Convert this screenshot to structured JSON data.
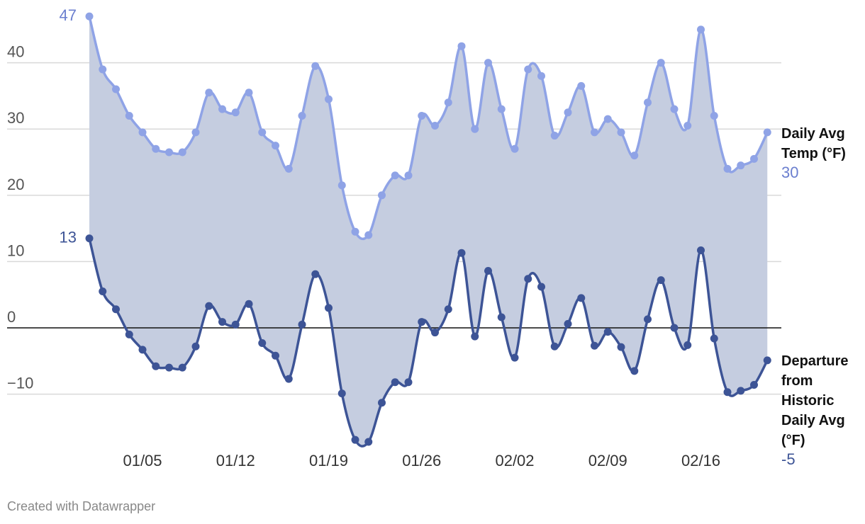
{
  "chart_data": {
    "type": "area",
    "title": "",
    "xlabel": "",
    "ylabel": "",
    "ylim": [
      -20,
      50
    ],
    "y_ticks": [
      -10,
      0,
      10,
      20,
      30,
      40
    ],
    "y_tick_labels": [
      "−10",
      "0",
      "10",
      "20",
      "30",
      "40"
    ],
    "x_tick_labels": [
      "01/05",
      "01/12",
      "01/19",
      "01/26",
      "02/02",
      "02/09",
      "02/16"
    ],
    "x_tick_day_index": [
      4,
      11,
      18,
      25,
      32,
      39,
      46
    ],
    "grid": true,
    "zero_line": true,
    "fill_between_series": true,
    "colors": {
      "temp": "#8fa3e6",
      "departure": "#3d5496",
      "fill": "#c5cde0",
      "grid": "#d9d9d9",
      "zero": "#111111"
    },
    "series": [
      {
        "name": "Daily Avg Temp (°F)",
        "name_lines": [
          "Daily Avg",
          "Temp (°F)"
        ],
        "start_label": "47",
        "end_label": "30",
        "values": [
          47,
          39,
          36,
          32,
          29.5,
          27,
          26.5,
          26.5,
          29.5,
          35.5,
          33,
          32.5,
          35.5,
          29.5,
          27.5,
          24,
          32,
          39.5,
          34.5,
          21.5,
          14.5,
          14,
          20,
          23,
          23,
          32,
          30.5,
          34,
          42.5,
          30,
          40,
          33,
          27,
          39,
          38,
          29,
          32.5,
          36.5,
          29.5,
          31.5,
          29.5,
          26,
          34,
          40,
          33,
          30.5,
          45,
          32,
          24,
          24.5,
          25.5,
          29.5
        ]
      },
      {
        "name": "Departure from Historic Daily Avg (°F)",
        "name_lines": [
          "Departure",
          "from",
          "Historic",
          "Daily Avg",
          "(°F)"
        ],
        "start_label": "13",
        "end_label": "-5",
        "values": [
          13.5,
          5.5,
          2.8,
          -1,
          -3.3,
          -5.8,
          -6,
          -6,
          -2.8,
          3.3,
          0.9,
          0.5,
          3.6,
          -2.3,
          -4.2,
          -7.7,
          0.5,
          8.1,
          3,
          -9.9,
          -16.9,
          -17.2,
          -11.3,
          -8.2,
          -8.2,
          0.9,
          -0.7,
          2.8,
          11.3,
          -1.3,
          8.6,
          1.6,
          -4.5,
          7.4,
          6.2,
          -2.8,
          0.6,
          4.5,
          -2.7,
          -0.6,
          -2.9,
          -6.5,
          1.3,
          7.2,
          0,
          -2.6,
          11.7,
          -1.6,
          -9.7,
          -9.5,
          -8.6,
          -4.9
        ]
      }
    ]
  },
  "footer": {
    "credit": "Created with Datawrapper"
  }
}
